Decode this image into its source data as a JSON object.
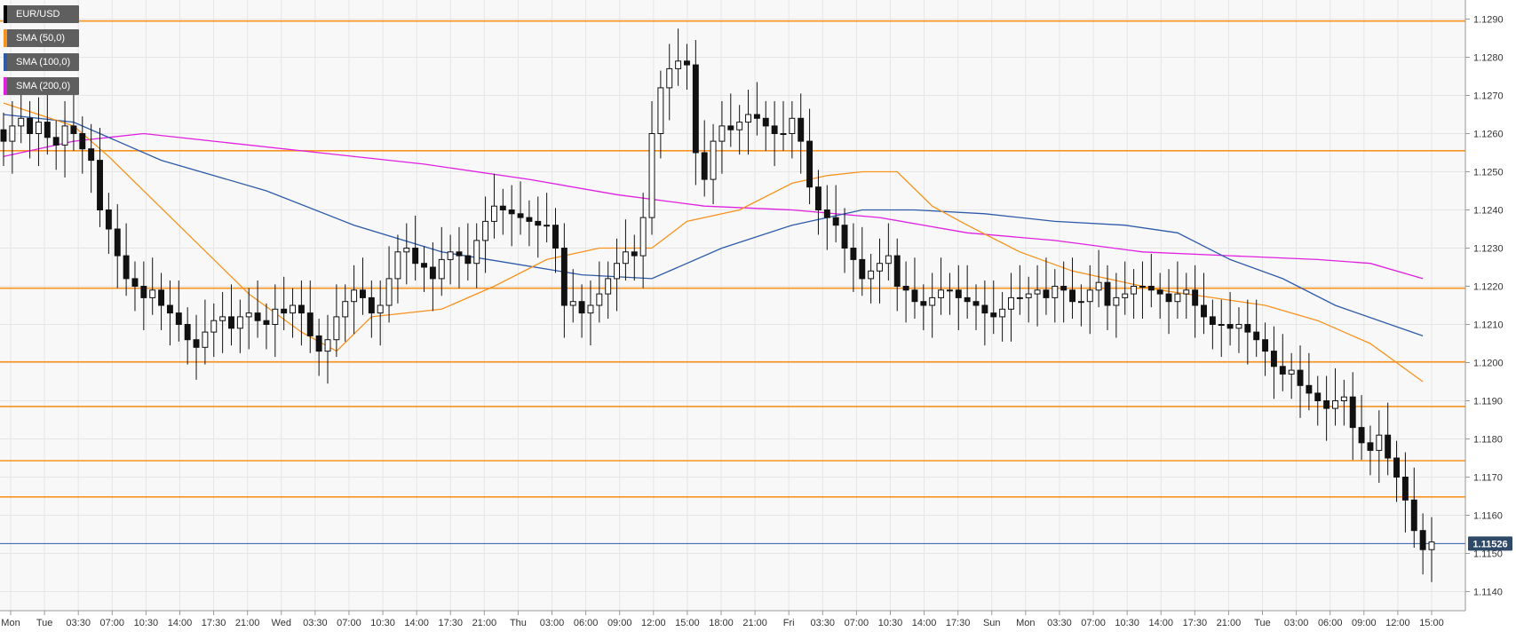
{
  "chart_data": {
    "type": "candlestick",
    "symbol": "EUR/USD",
    "legend": [
      {
        "label": "EUR/USD",
        "color": "#000000"
      },
      {
        "label": "SMA (50,0)",
        "color": "#f7931e"
      },
      {
        "label": "SMA (100,0)",
        "color": "#2e5aa8"
      },
      {
        "label": "SMA (200,0)",
        "color": "#e020e0"
      }
    ],
    "ylim": [
      1.1135,
      1.1295
    ],
    "y_ticks": [
      "1.1140",
      "1.1150",
      "1.1160",
      "1.1170",
      "1.1180",
      "1.1190",
      "1.1200",
      "1.1210",
      "1.1220",
      "1.1230",
      "1.1240",
      "1.1250",
      "1.1260",
      "1.1270",
      "1.1280",
      "1.1290"
    ],
    "x_tick_labels": [
      "Mon",
      "Tue",
      "03:30",
      "07:00",
      "10:30",
      "14:00",
      "17:30",
      "21:00",
      "Wed",
      "03:30",
      "07:00",
      "10:30",
      "14:00",
      "17:30",
      "21:00",
      "Thu",
      "03:00",
      "06:00",
      "09:00",
      "12:00",
      "15:00",
      "18:00",
      "21:00",
      "Fri",
      "03:30",
      "07:00",
      "10:30",
      "14:00",
      "17:30",
      "Sun",
      "Mon",
      "03:30",
      "07:00",
      "10:30",
      "14:00",
      "17:30",
      "21:00",
      "Tue",
      "03:00",
      "06:00",
      "09:00",
      "12:00",
      "15:00"
    ],
    "last_price": "1.11526",
    "last_price_value": 1.11526,
    "levels": [
      1.12895,
      1.12555,
      1.12195,
      1.12002,
      1.11885,
      1.11743,
      1.11648
    ],
    "level_color": "#f7931e",
    "price_line_color": "#2e5aa8",
    "price_series": [
      1.1258,
      1.1262,
      1.1264,
      1.126,
      1.1263,
      1.1259,
      1.1257,
      1.1262,
      1.126,
      1.1256,
      1.1253,
      1.124,
      1.1235,
      1.1228,
      1.1222,
      1.122,
      1.1217,
      1.1219,
      1.1215,
      1.1213,
      1.121,
      1.1206,
      1.1204,
      1.1208,
      1.1211,
      1.1212,
      1.1209,
      1.1212,
      1.1213,
      1.1211,
      1.121,
      1.1214,
      1.1213,
      1.1215,
      1.1213,
      1.1207,
      1.1203,
      1.1206,
      1.1212,
      1.1216,
      1.1219,
      1.1217,
      1.1213,
      1.1215,
      1.1222,
      1.1229,
      1.123,
      1.1226,
      1.1225,
      1.1222,
      1.1227,
      1.1229,
      1.1228,
      1.1226,
      1.1232,
      1.1237,
      1.1241,
      1.124,
      1.1239,
      1.1238,
      1.1237,
      1.1236,
      1.1236,
      1.123,
      1.1215,
      1.1216,
      1.1213,
      1.1215,
      1.1218,
      1.1222,
      1.1226,
      1.1229,
      1.1228,
      1.1238,
      1.126,
      1.1272,
      1.1277,
      1.1279,
      1.1278,
      1.1255,
      1.1248,
      1.1258,
      1.1262,
      1.1261,
      1.1263,
      1.1265,
      1.1264,
      1.1262,
      1.126,
      1.126,
      1.1264,
      1.1258,
      1.1246,
      1.124,
      1.1238,
      1.1236,
      1.123,
      1.1227,
      1.1222,
      1.1224,
      1.1226,
      1.1228,
      1.122,
      1.1219,
      1.1216,
      1.1215,
      1.1217,
      1.1219,
      1.1219,
      1.1217,
      1.1216,
      1.1215,
      1.1213,
      1.1212,
      1.1214,
      1.1217,
      1.1217,
      1.1218,
      1.1219,
      1.1217,
      1.122,
      1.1219,
      1.1216,
      1.1216,
      1.1219,
      1.1221,
      1.1215,
      1.1217,
      1.1218,
      1.122,
      1.122,
      1.1219,
      1.1218,
      1.1216,
      1.1218,
      1.1219,
      1.1215,
      1.1212,
      1.121,
      1.121,
      1.1209,
      1.121,
      1.1208,
      1.1206,
      1.1203,
      1.1199,
      1.1197,
      1.1198,
      1.1194,
      1.1192,
      1.119,
      1.1188,
      1.119,
      1.1191,
      1.1183,
      1.1179,
      1.1177,
      1.1181,
      1.1175,
      1.117,
      1.1164,
      1.1156,
      1.1151,
      1.1153
    ],
    "sma50": [
      [
        0,
        1.1268
      ],
      [
        4,
        1.1265
      ],
      [
        8,
        1.1262
      ],
      [
        12,
        1.1254
      ],
      [
        20,
        1.1236
      ],
      [
        28,
        1.1218
      ],
      [
        34,
        1.1208
      ],
      [
        38,
        1.1203
      ],
      [
        42,
        1.1212
      ],
      [
        50,
        1.1214
      ],
      [
        56,
        1.122
      ],
      [
        62,
        1.1227
      ],
      [
        68,
        1.123
      ],
      [
        74,
        1.123
      ],
      [
        78,
        1.1237
      ],
      [
        84,
        1.124
      ],
      [
        90,
        1.1247
      ],
      [
        94,
        1.1249
      ],
      [
        98,
        1.125
      ],
      [
        102,
        1.125
      ],
      [
        106,
        1.1241
      ],
      [
        110,
        1.1236
      ],
      [
        116,
        1.1229
      ],
      [
        122,
        1.1224
      ],
      [
        128,
        1.1221
      ],
      [
        132,
        1.1219
      ],
      [
        138,
        1.1217
      ],
      [
        144,
        1.1215
      ],
      [
        150,
        1.1211
      ],
      [
        156,
        1.1205
      ],
      [
        162,
        1.1195
      ]
    ],
    "sma100": [
      [
        0,
        1.1265
      ],
      [
        8,
        1.1263
      ],
      [
        18,
        1.1253
      ],
      [
        30,
        1.1245
      ],
      [
        40,
        1.1236
      ],
      [
        50,
        1.1229
      ],
      [
        58,
        1.1226
      ],
      [
        66,
        1.1223
      ],
      [
        74,
        1.1222
      ],
      [
        82,
        1.123
      ],
      [
        90,
        1.1236
      ],
      [
        98,
        1.124
      ],
      [
        104,
        1.124
      ],
      [
        112,
        1.1239
      ],
      [
        120,
        1.1237
      ],
      [
        128,
        1.1236
      ],
      [
        134,
        1.1234
      ],
      [
        140,
        1.1227
      ],
      [
        146,
        1.1222
      ],
      [
        152,
        1.1215
      ],
      [
        162,
        1.1207
      ]
    ],
    "sma200": [
      [
        0,
        1.1254
      ],
      [
        8,
        1.1258
      ],
      [
        16,
        1.126
      ],
      [
        24,
        1.1258
      ],
      [
        36,
        1.1255
      ],
      [
        48,
        1.1252
      ],
      [
        60,
        1.1248
      ],
      [
        70,
        1.1244
      ],
      [
        80,
        1.1241
      ],
      [
        90,
        1.124
      ],
      [
        100,
        1.1238
      ],
      [
        110,
        1.1234
      ],
      [
        120,
        1.1232
      ],
      [
        130,
        1.1229
      ],
      [
        140,
        1.1228
      ],
      [
        150,
        1.1227
      ],
      [
        156,
        1.1226
      ],
      [
        162,
        1.1222
      ]
    ],
    "grid": true,
    "legend_position": "top-left"
  }
}
